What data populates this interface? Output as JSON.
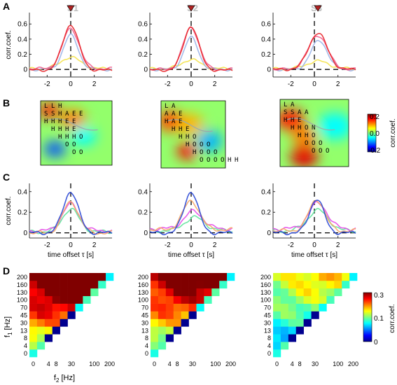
{
  "panel_letters": [
    "A",
    "B",
    "C",
    "D"
  ],
  "columns": [
    "S1",
    "S2",
    "S3"
  ],
  "colors": {
    "red": "#e8262b",
    "pink": "#f0608f",
    "lightblue": "#9ab4e8",
    "yellow": "#f4e24a",
    "blue": "#2a48d6",
    "orange": "#f7a867",
    "magenta": "#e44be8",
    "green": "#5fe39a",
    "marker": "#b22222"
  },
  "colorbar_B": {
    "ticks": [
      "0.2",
      "0.0",
      "-0.2"
    ],
    "label": "corr.coef."
  },
  "colorbar_D": {
    "ticks": [
      "0.3",
      "0.1",
      "0"
    ],
    "label": "corr.coef."
  },
  "rowD": {
    "ylabel_main": "f",
    "ylabel_sub": "1",
    "ylabel_unit": " [Hz]",
    "xlabel_main": "f",
    "xlabel_sub": "2",
    "xlabel_unit": " [Hz]",
    "yticks": [
      "200",
      "160",
      "130",
      "100",
      "70",
      "45",
      "30",
      "13",
      "8",
      "4",
      "0"
    ],
    "xticks": [
      "0",
      "4",
      "8",
      "30",
      "100",
      "200"
    ]
  },
  "chart_data": [
    {
      "type": "line",
      "panel": "A",
      "ylabel": "corr.coef.",
      "ylim": [
        -0.1,
        0.75
      ],
      "xlim": [
        -3.5,
        3.5
      ],
      "yticks": [
        "0.6",
        "0.4",
        "0.2",
        "0"
      ],
      "xticks": [
        "-2",
        "0",
        "2"
      ],
      "subplots": [
        {
          "title": "S1",
          "peak_marker_x": 0.0,
          "series": [
            {
              "color": "red",
              "peak": 0.6,
              "width": 0.95,
              "center": 0.0,
              "base": -0.01
            },
            {
              "color": "pink",
              "peak": 0.53,
              "width": 1.0,
              "center": 0.0,
              "base": 0.01
            },
            {
              "color": "lightblue",
              "peak": 0.45,
              "width": 0.9,
              "center": 0.0,
              "base": 0.0
            },
            {
              "color": "yellow",
              "peak": 0.15,
              "width": 1.2,
              "center": 0.0,
              "base": 0.01
            }
          ]
        },
        {
          "title": "S2",
          "peak_marker_x": 0.0,
          "series": [
            {
              "color": "red",
              "peak": 0.58,
              "width": 0.9,
              "center": 0.0,
              "base": -0.01
            },
            {
              "color": "pink",
              "peak": 0.55,
              "width": 0.95,
              "center": 0.0,
              "base": 0.0
            },
            {
              "color": "lightblue",
              "peak": 0.42,
              "width": 0.85,
              "center": 0.0,
              "base": 0.0
            },
            {
              "color": "yellow",
              "peak": 0.12,
              "width": 1.1,
              "center": 0.0,
              "base": 0.01
            }
          ]
        },
        {
          "title": "S3",
          "peak_marker_x": 0.3,
          "series": [
            {
              "color": "red",
              "peak": 0.48,
              "width": 1.1,
              "center": 0.3,
              "base": 0.0
            },
            {
              "color": "pink",
              "peak": 0.45,
              "width": 1.15,
              "center": 0.3,
              "base": 0.0
            },
            {
              "color": "lightblue",
              "peak": 0.38,
              "width": 1.0,
              "center": 0.4,
              "base": 0.0
            },
            {
              "color": "yellow",
              "peak": 0.1,
              "width": 1.3,
              "center": 0.3,
              "base": 0.01
            }
          ]
        }
      ]
    },
    {
      "type": "heatmap",
      "panel": "B",
      "colorbar_range": [
        -0.2,
        0.2
      ],
      "subplots": [
        {
          "rows": [
            [
              "L",
              "L",
              "H"
            ],
            [
              "S",
              "S",
              "H",
              "A",
              "E",
              "E"
            ],
            [
              "H",
              "H",
              "H",
              "E",
              "E"
            ],
            [
              "H",
              "H",
              "H",
              "E"
            ],
            [
              "H",
              "H",
              "H",
              "O"
            ],
            [
              "O",
              "O"
            ],
            [
              "O",
              "O"
            ]
          ],
          "blobs": [
            [
              0.12,
              0.15,
              0.15,
              0.14
            ],
            [
              0.45,
              0.28,
              0.18,
              0.1
            ],
            [
              0.6,
              0.55,
              0.18,
              -0.05
            ],
            [
              0.2,
              0.75,
              0.15,
              -0.12
            ]
          ]
        },
        {
          "rows": [
            [
              "L",
              "A"
            ],
            [
              "A",
              "A",
              "E"
            ],
            [
              "H",
              "A",
              "E"
            ],
            [
              "H",
              "H",
              "E"
            ],
            [
              "H",
              "H",
              "O"
            ],
            [
              "H",
              "O",
              "O",
              "O"
            ],
            [
              "H",
              "O",
              "O",
              "O"
            ],
            [
              "O",
              "O",
              "O",
              "O",
              "H",
              "H"
            ]
          ],
          "blobs": [
            [
              0.15,
              0.3,
              0.2,
              0.12
            ],
            [
              0.45,
              0.35,
              0.2,
              0.08
            ],
            [
              0.4,
              0.75,
              0.15,
              0.15
            ],
            [
              0.75,
              0.6,
              0.2,
              -0.08
            ]
          ]
        },
        {
          "rows": [
            [
              "L",
              "A"
            ],
            [
              "S",
              "S",
              "A",
              "A"
            ],
            [
              "H",
              "H",
              "E"
            ],
            [
              "H",
              "H",
              "O",
              "N"
            ],
            [
              "H",
              "H",
              "O"
            ],
            [
              "O",
              "O",
              "O"
            ],
            [
              "O",
              "O",
              "O"
            ]
          ],
          "blobs": [
            [
              0.15,
              0.3,
              0.2,
              0.14
            ],
            [
              0.35,
              0.55,
              0.18,
              0.1
            ],
            [
              0.35,
              0.85,
              0.2,
              0.16
            ],
            [
              0.8,
              0.4,
              0.25,
              -0.05
            ]
          ]
        }
      ]
    },
    {
      "type": "line",
      "panel": "C",
      "ylabel": "corr.coef.",
      "xlabel": "time offset τ [s]",
      "ylim": [
        -0.05,
        0.48
      ],
      "xlim": [
        -3.5,
        3.5
      ],
      "yticks": [
        "0.4",
        "0.2",
        "0"
      ],
      "xticks": [
        "-2",
        "0",
        "2"
      ],
      "subplots": [
        {
          "series": [
            {
              "color": "blue",
              "peak": 0.4,
              "width": 0.9,
              "center": 0.0,
              "base": 0.0
            },
            {
              "color": "orange",
              "peak": 0.3,
              "width": 0.95,
              "center": 0.0,
              "base": 0.0
            },
            {
              "color": "magenta",
              "peak": 0.26,
              "width": 1.0,
              "center": 0.0,
              "base": 0.02
            },
            {
              "color": "green",
              "peak": 0.22,
              "width": 1.0,
              "center": 0.0,
              "base": 0.01
            }
          ]
        },
        {
          "series": [
            {
              "color": "blue",
              "peak": 0.4,
              "width": 0.85,
              "center": 0.0,
              "base": 0.0
            },
            {
              "color": "orange",
              "peak": 0.28,
              "width": 1.0,
              "center": 0.0,
              "base": 0.03
            },
            {
              "color": "magenta",
              "peak": 0.17,
              "width": 1.1,
              "center": 0.2,
              "base": 0.04
            },
            {
              "color": "green",
              "peak": 0.13,
              "width": 1.2,
              "center": 0.3,
              "base": 0.02
            }
          ]
        },
        {
          "series": [
            {
              "color": "blue",
              "peak": 0.33,
              "width": 0.85,
              "center": 0.2,
              "base": 0.0
            },
            {
              "color": "orange",
              "peak": 0.3,
              "width": 0.95,
              "center": 0.2,
              "base": 0.02
            },
            {
              "color": "magenta",
              "peak": 0.25,
              "width": 1.1,
              "center": 0.3,
              "base": 0.04
            },
            {
              "color": "green",
              "peak": 0.2,
              "width": 1.2,
              "center": 0.3,
              "base": 0.02
            }
          ]
        }
      ]
    },
    {
      "type": "heatmap",
      "panel": "D",
      "colorbar_range": [
        0,
        0.3
      ],
      "subplots": [
        {
          "scale": 1.0
        },
        {
          "scale": 0.9
        },
        {
          "scale": 0.55
        }
      ]
    }
  ]
}
